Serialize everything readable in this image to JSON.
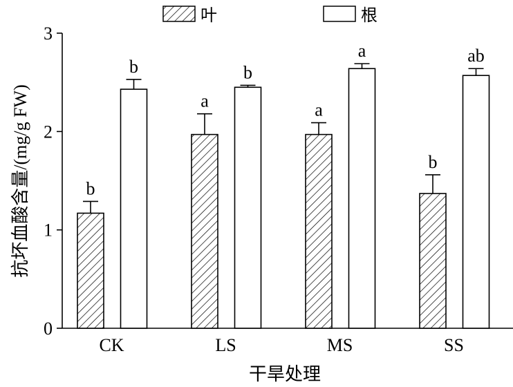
{
  "chart_data": {
    "type": "bar",
    "categories": [
      "CK",
      "LS",
      "MS",
      "SS"
    ],
    "series": [
      {
        "name": "叶",
        "values": [
          1.17,
          1.97,
          1.97,
          1.37
        ],
        "errors": [
          0.12,
          0.21,
          0.12,
          0.19
        ],
        "labels": [
          "b",
          "a",
          "a",
          "b"
        ],
        "pattern": "hatched"
      },
      {
        "name": "根",
        "values": [
          2.43,
          2.45,
          2.64,
          2.57
        ],
        "errors": [
          0.1,
          0.02,
          0.05,
          0.07
        ],
        "labels": [
          "b",
          "b",
          "a",
          "ab"
        ],
        "pattern": "open"
      }
    ],
    "xlabel": "干旱处理",
    "ylabel": "抗坏血酸含量/(mg/g FW)",
    "ylim": [
      0,
      3
    ],
    "yticks": [
      0,
      1,
      2,
      3
    ],
    "grid": false,
    "legend": "top"
  }
}
